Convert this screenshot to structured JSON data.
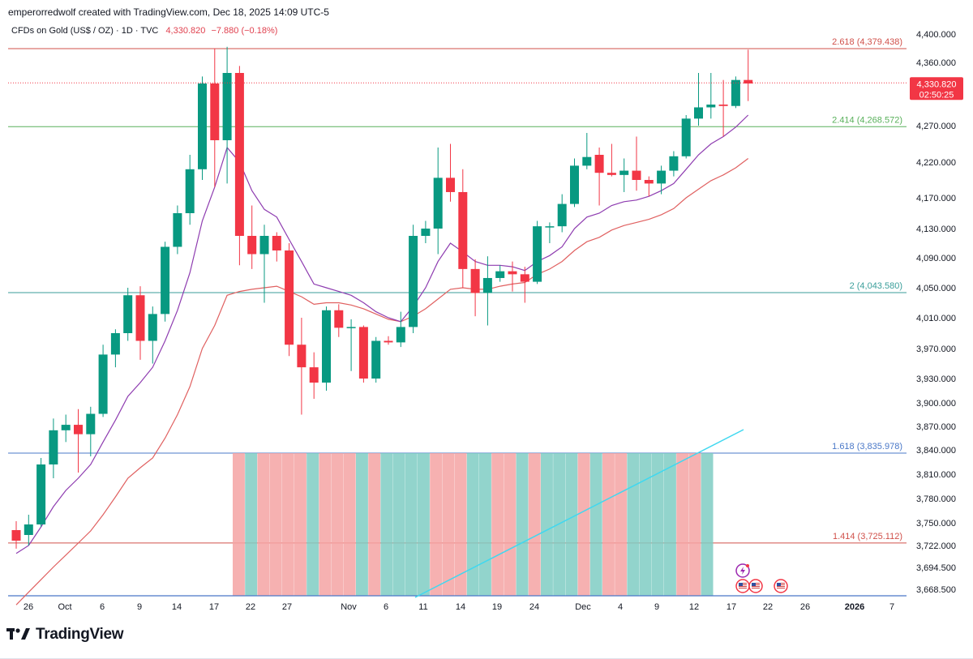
{
  "header": {
    "attribution": "emperorredwolf created with TradingView.com, Dec 18, 2025 14:09 UTC-5"
  },
  "legend": {
    "symbol": "CFDs on Gold (US$ / OZ)",
    "interval": "1D",
    "source": "TVC",
    "price": "4,330.820",
    "change": "−7.880 (−0.18%)"
  },
  "current_price_tag": {
    "price": "4,330.820",
    "countdown": "02:50:25"
  },
  "brand": {
    "name": "TradingView"
  },
  "colors": {
    "up": "#089981",
    "down": "#f23645",
    "ema_fast": "#8e3cb0",
    "ema_slow": "#e06060",
    "trend": "#3fd8f0"
  },
  "chart_data": {
    "type": "candlestick",
    "title": "CFDs on Gold (US$ / OZ) · 1D · TVC",
    "y_axis": {
      "ticks": [
        "4,400.000",
        "4,360.000",
        "4,270.000",
        "4,220.000",
        "4,170.000",
        "4,130.000",
        "4,090.000",
        "4,050.000",
        "4,010.000",
        "3,970.000",
        "3,930.000",
        "3,900.000",
        "3,870.000",
        "3,840.000",
        "3,810.000",
        "3,780.000",
        "3,750.000",
        "3,722.000",
        "3,694.500",
        "3,668.500"
      ]
    },
    "x_axis": {
      "ticks": [
        "26",
        "Oct",
        "6",
        "9",
        "14",
        "17",
        "22",
        "27",
        "Nov",
        "6",
        "11",
        "14",
        "19",
        "24",
        "Dec",
        "4",
        "9",
        "12",
        "17",
        "22",
        "26",
        "2026",
        "7"
      ]
    },
    "fib_levels": [
      {
        "label": "2.618 (4,379.438)",
        "value": 4379.438,
        "color": "#d0504a",
        "style": "solid"
      },
      {
        "label": "2.414 (4,268.572)",
        "value": 4268.572,
        "color": "#58b05a",
        "style": "solid"
      },
      {
        "label": "2 (4,043.580)",
        "value": 4043.58,
        "color": "#3a9e9a",
        "style": "solid"
      },
      {
        "label": "1.618 (3,835.978)",
        "value": 3835.978,
        "color": "#4a78c8",
        "style": "solid"
      },
      {
        "label": "1.414 (3,725.112)",
        "value": 3725.112,
        "color": "#d0504a",
        "style": "solid"
      }
    ],
    "current_price": 4330.82,
    "candles": [
      {
        "o": 3741,
        "h": 3752,
        "l": 3718,
        "c": 3728
      },
      {
        "o": 3735,
        "h": 3760,
        "l": 3722,
        "c": 3748
      },
      {
        "o": 3748,
        "h": 3830,
        "l": 3745,
        "c": 3822
      },
      {
        "o": 3822,
        "h": 3880,
        "l": 3805,
        "c": 3865
      },
      {
        "o": 3865,
        "h": 3885,
        "l": 3850,
        "c": 3872
      },
      {
        "o": 3872,
        "h": 3892,
        "l": 3812,
        "c": 3860
      },
      {
        "o": 3860,
        "h": 3895,
        "l": 3832,
        "c": 3886
      },
      {
        "o": 3886,
        "h": 3975,
        "l": 3882,
        "c": 3962
      },
      {
        "o": 3962,
        "h": 3995,
        "l": 3945,
        "c": 3990
      },
      {
        "o": 3990,
        "h": 4050,
        "l": 3980,
        "c": 4040
      },
      {
        "o": 4040,
        "h": 4052,
        "l": 3955,
        "c": 3980
      },
      {
        "o": 3980,
        "h": 4025,
        "l": 3950,
        "c": 4015
      },
      {
        "o": 4015,
        "h": 4112,
        "l": 4005,
        "c": 4105
      },
      {
        "o": 4105,
        "h": 4160,
        "l": 4095,
        "c": 4150
      },
      {
        "o": 4150,
        "h": 4230,
        "l": 4135,
        "c": 4210
      },
      {
        "o": 4210,
        "h": 4340,
        "l": 4195,
        "c": 4330
      },
      {
        "o": 4330,
        "h": 4380,
        "l": 4185,
        "c": 4250
      },
      {
        "o": 4250,
        "h": 4382,
        "l": 4190,
        "c": 4345
      },
      {
        "o": 4345,
        "h": 4355,
        "l": 4080,
        "c": 4120
      },
      {
        "o": 4120,
        "h": 4160,
        "l": 4075,
        "c": 4095
      },
      {
        "o": 4095,
        "h": 4135,
        "l": 4030,
        "c": 4120
      },
      {
        "o": 4120,
        "h": 4125,
        "l": 4085,
        "c": 4100
      },
      {
        "o": 4100,
        "h": 4110,
        "l": 3960,
        "c": 3975
      },
      {
        "o": 3975,
        "h": 4010,
        "l": 3885,
        "c": 3945
      },
      {
        "o": 3945,
        "h": 3965,
        "l": 3905,
        "c": 3925
      },
      {
        "o": 3925,
        "h": 4025,
        "l": 3915,
        "c": 4020
      },
      {
        "o": 4020,
        "h": 4028,
        "l": 3985,
        "c": 3997
      },
      {
        "o": 3997,
        "h": 4008,
        "l": 3940,
        "c": 3998
      },
      {
        "o": 3998,
        "h": 4000,
        "l": 3925,
        "c": 3930
      },
      {
        "o": 3930,
        "h": 3985,
        "l": 3925,
        "c": 3980
      },
      {
        "o": 3980,
        "h": 3986,
        "l": 3975,
        "c": 3978
      },
      {
        "o": 3978,
        "h": 4018,
        "l": 3972,
        "c": 3998
      },
      {
        "o": 3998,
        "h": 4135,
        "l": 3990,
        "c": 4120
      },
      {
        "o": 4120,
        "h": 4140,
        "l": 4110,
        "c": 4130
      },
      {
        "o": 4130,
        "h": 4240,
        "l": 4095,
        "c": 4198
      },
      {
        "o": 4198,
        "h": 4245,
        "l": 4165,
        "c": 4178
      },
      {
        "o": 4178,
        "h": 4210,
        "l": 4050,
        "c": 4075
      },
      {
        "o": 4075,
        "h": 4088,
        "l": 4012,
        "c": 4043
      },
      {
        "o": 4043,
        "h": 4092,
        "l": 4000,
        "c": 4063
      },
      {
        "o": 4063,
        "h": 4080,
        "l": 4058,
        "c": 4072
      },
      {
        "o": 4072,
        "h": 4085,
        "l": 4045,
        "c": 4068
      },
      {
        "o": 4068,
        "h": 4078,
        "l": 4030,
        "c": 4058
      },
      {
        "o": 4058,
        "h": 4140,
        "l": 4055,
        "c": 4133
      },
      {
        "o": 4133,
        "h": 4138,
        "l": 4110,
        "c": 4133
      },
      {
        "o": 4133,
        "h": 4175,
        "l": 4125,
        "c": 4162
      },
      {
        "o": 4162,
        "h": 4225,
        "l": 4158,
        "c": 4215
      },
      {
        "o": 4215,
        "h": 4260,
        "l": 4210,
        "c": 4227
      },
      {
        "o": 4230,
        "h": 4240,
        "l": 4160,
        "c": 4205
      },
      {
        "o": 4205,
        "h": 4245,
        "l": 4200,
        "c": 4202
      },
      {
        "o": 4202,
        "h": 4225,
        "l": 4178,
        "c": 4208
      },
      {
        "o": 4208,
        "h": 4255,
        "l": 4180,
        "c": 4195
      },
      {
        "o": 4195,
        "h": 4200,
        "l": 4172,
        "c": 4190
      },
      {
        "o": 4190,
        "h": 4215,
        "l": 4175,
        "c": 4208
      },
      {
        "o": 4208,
        "h": 4235,
        "l": 4200,
        "c": 4228
      },
      {
        "o": 4228,
        "h": 4285,
        "l": 4225,
        "c": 4280
      },
      {
        "o": 4280,
        "h": 4345,
        "l": 4270,
        "c": 4296
      },
      {
        "o": 4296,
        "h": 4345,
        "l": 4280,
        "c": 4300
      },
      {
        "o": 4300,
        "h": 4335,
        "l": 4255,
        "c": 4298
      },
      {
        "o": 4298,
        "h": 4340,
        "l": 4295,
        "c": 4335
      },
      {
        "o": 4335,
        "h": 4378,
        "l": 4305,
        "c": 4330
      }
    ],
    "ema_fast": [
      3712,
      3722,
      3745,
      3770,
      3790,
      3805,
      3822,
      3850,
      3878,
      3908,
      3925,
      3945,
      3980,
      4020,
      4070,
      4140,
      4185,
      4240,
      4220,
      4180,
      4155,
      4145,
      4115,
      4085,
      4055,
      4050,
      4045,
      4040,
      4030,
      4018,
      4010,
      4005,
      4025,
      4050,
      4085,
      4110,
      4098,
      4085,
      4080,
      4080,
      4078,
      4073,
      4085,
      4093,
      4105,
      4130,
      4145,
      4150,
      4160,
      4165,
      4167,
      4172,
      4180,
      4190,
      4210,
      4230,
      4245,
      4255,
      4268,
      4285
    ],
    "ema_slow": [
      3650,
      3665,
      3680,
      3695,
      3710,
      3725,
      3740,
      3760,
      3782,
      3805,
      3818,
      3830,
      3855,
      3885,
      3920,
      3970,
      4000,
      4040,
      4045,
      4048,
      4050,
      4052,
      4045,
      4038,
      4028,
      4030,
      4030,
      4027,
      4022,
      4015,
      4008,
      4005,
      4012,
      4022,
      4035,
      4048,
      4050,
      4048,
      4048,
      4052,
      4055,
      4057,
      4068,
      4075,
      4085,
      4100,
      4112,
      4118,
      4128,
      4134,
      4138,
      4142,
      4148,
      4156,
      4170,
      4182,
      4194,
      4202,
      4212,
      4225
    ],
    "bottom_bars": {
      "description": "histogram of alternating up/down day colors from Oct 20 onward",
      "colors": [
        "down",
        "up",
        "down",
        "down",
        "down",
        "down",
        "up",
        "down",
        "down",
        "down",
        "up",
        "down",
        "up",
        "up",
        "up",
        "up",
        "down",
        "down",
        "down",
        "up",
        "up",
        "down",
        "down",
        "up",
        "down",
        "up",
        "up",
        "up",
        "down",
        "up",
        "down",
        "down",
        "up",
        "up",
        "up",
        "up",
        "down",
        "down",
        "up"
      ]
    },
    "trend_line": {
      "from_date": "Nov 6",
      "to_date": "Dec 18"
    },
    "event_icons": [
      "lightning",
      "us-flag",
      "us-flag",
      "us-flag"
    ]
  }
}
